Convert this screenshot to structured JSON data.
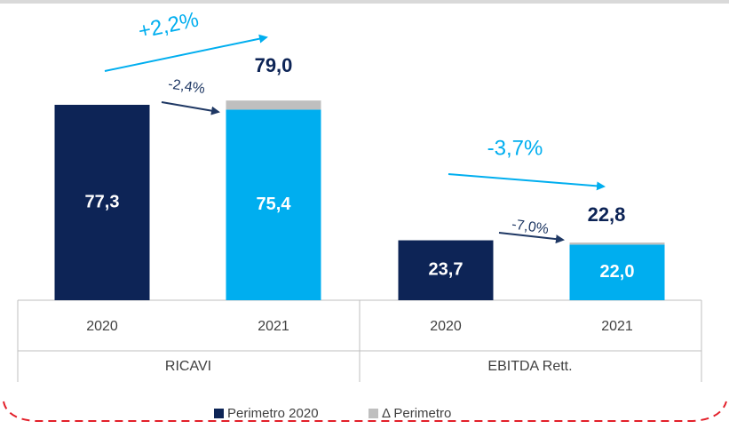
{
  "chart_data": {
    "type": "stacked_bar",
    "categories": [
      "2020",
      "2021",
      "2020",
      "2021"
    ],
    "groups": [
      {
        "name": "RICAVI",
        "total_label": "79,0",
        "total_change": "+2,2%",
        "like_for_like_change": "-2,4%"
      },
      {
        "name": "EBITDA Rett.",
        "total_label": "22,8",
        "total_change": "-3,7%",
        "like_for_like_change": "-7,0%"
      }
    ],
    "series": [
      {
        "name": "Perimetro 2020",
        "color": "#0d2456",
        "point_colors": [
          "#0d2456",
          "#00aeef",
          "#0d2456",
          "#00aeef"
        ],
        "values": [
          77.3,
          75.4,
          23.7,
          22.0
        ],
        "value_labels": [
          "77,3",
          "75,4",
          "23,7",
          "22,0"
        ]
      },
      {
        "name": "Δ Perimetro",
        "color": "#bfbfbf",
        "values": [
          0,
          3.6,
          0,
          0.8
        ]
      }
    ],
    "total_change_color": "#00aeef",
    "like_for_like_color": "#1f3864"
  }
}
